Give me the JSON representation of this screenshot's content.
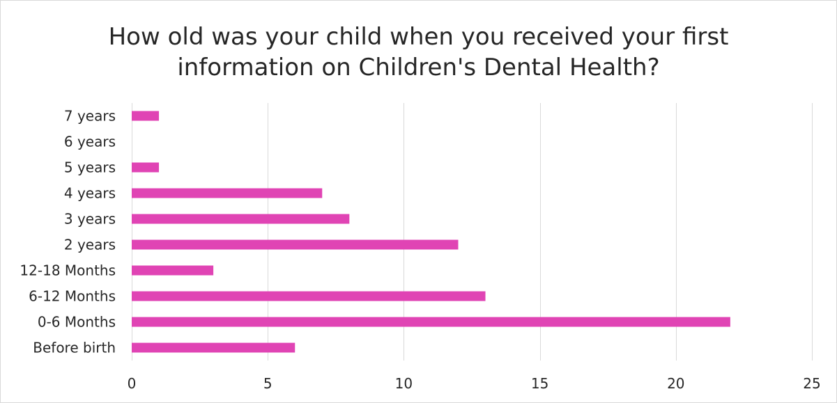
{
  "chart_data": {
    "type": "bar",
    "orientation": "horizontal",
    "title_lines": [
      "How old was your child when you received your first",
      "information on Children's Dental Health?"
    ],
    "categories": [
      "Before birth",
      "0-6 Months",
      "6-12 Months",
      "12-18 Months",
      "2 years",
      "3 years",
      "4 years",
      "5 years",
      "6 years",
      "7 years"
    ],
    "values": [
      6,
      22,
      13,
      3,
      12,
      8,
      7,
      1,
      0,
      1
    ],
    "xlim": [
      0,
      25
    ],
    "x_ticks": [
      0,
      5,
      10,
      15,
      20,
      25
    ],
    "xlabel": "",
    "ylabel": "",
    "grid": "vertical",
    "legend": "none",
    "bar_color": "#e044b4",
    "grid_color": "#d9d9d9"
  }
}
